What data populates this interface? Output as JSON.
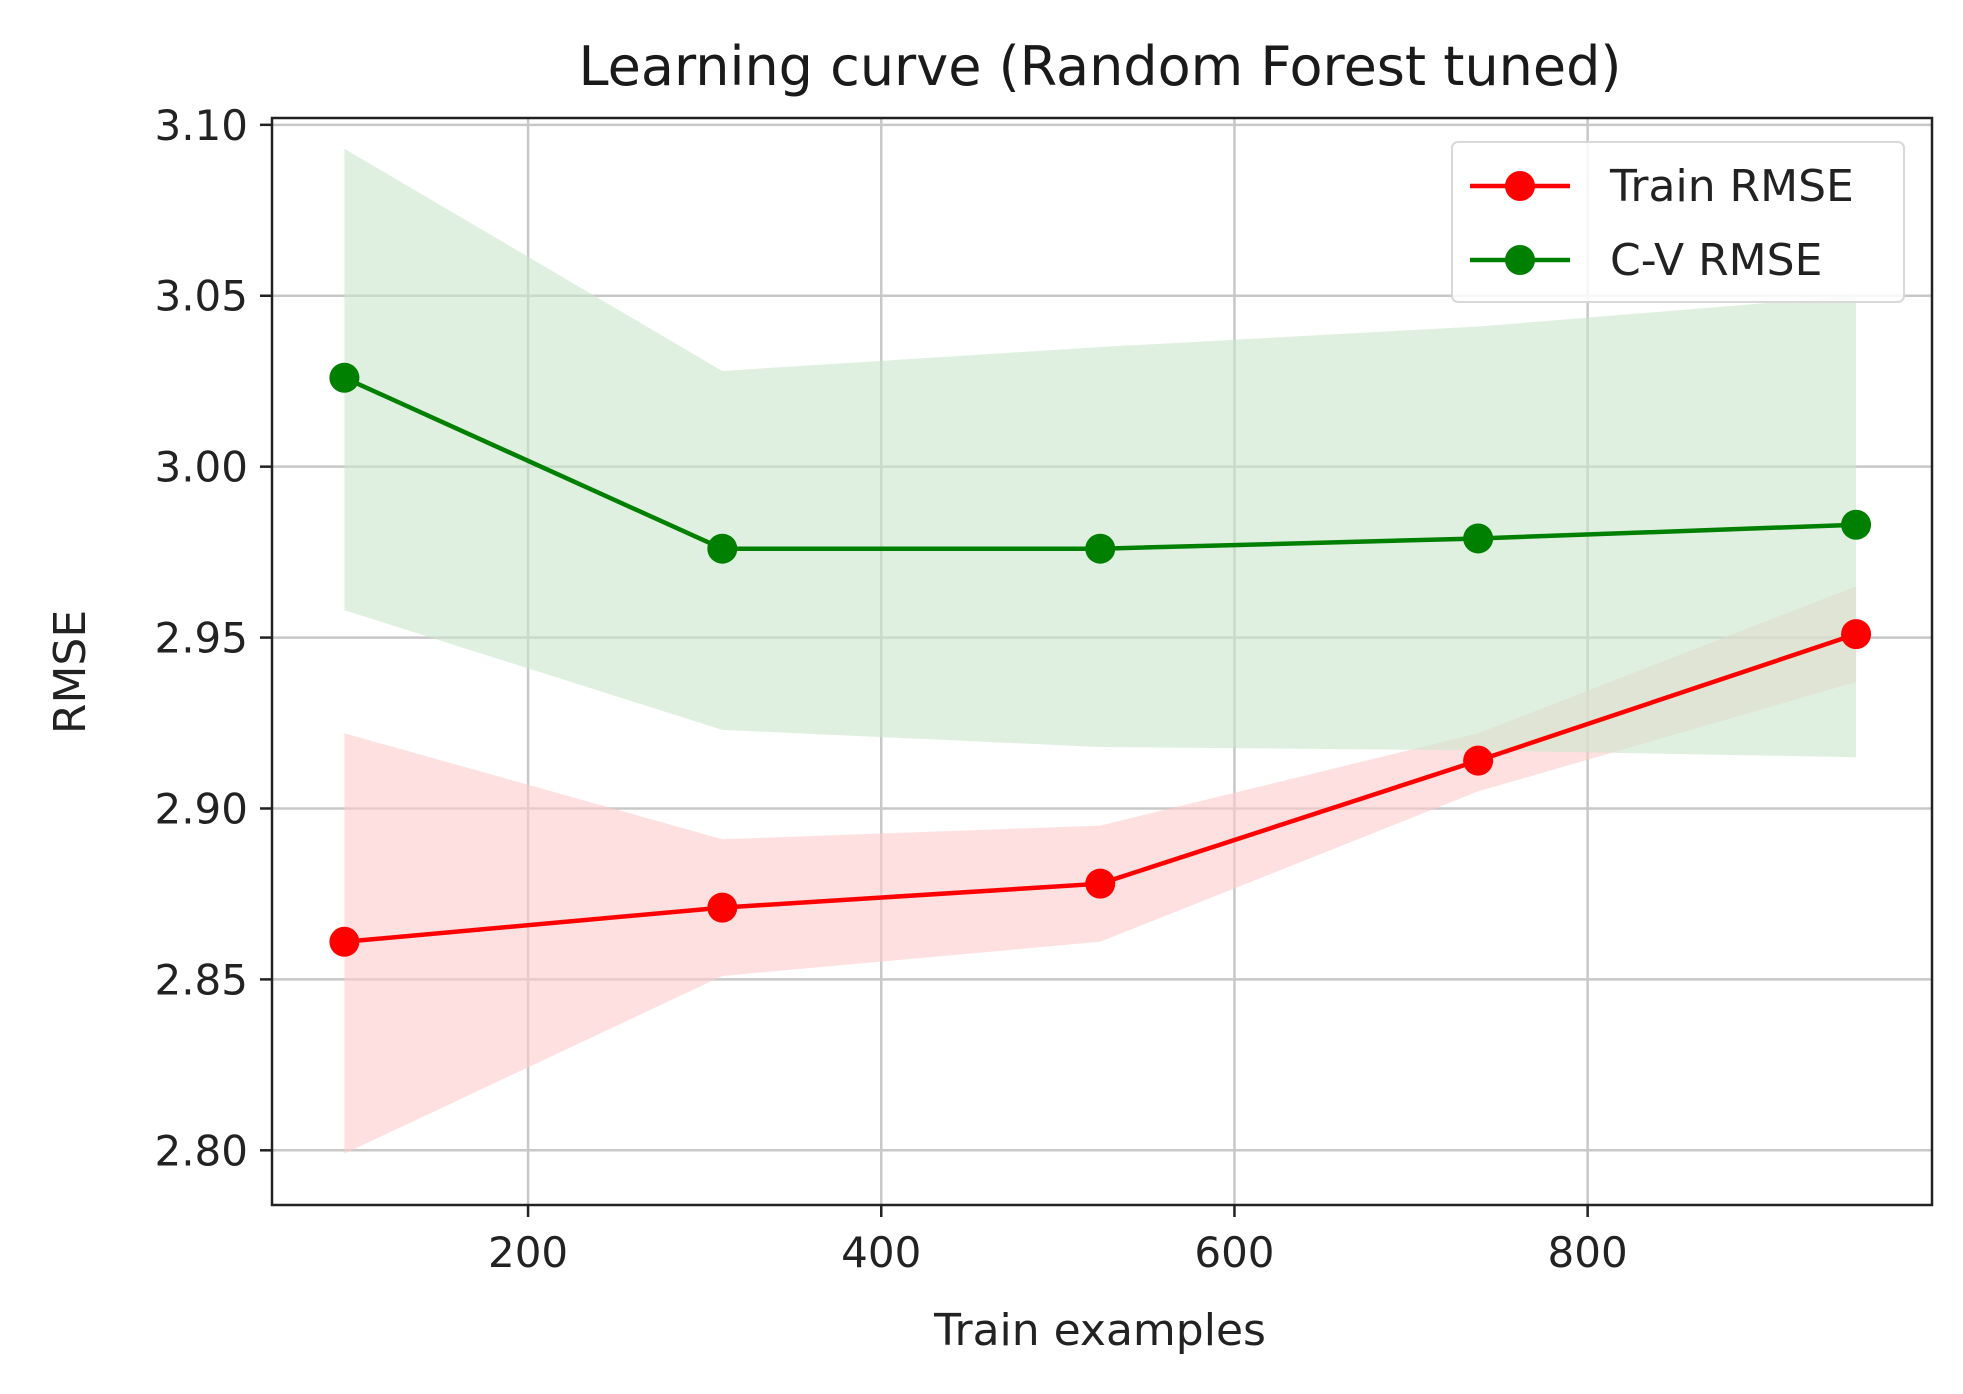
{
  "chart_data": {
    "type": "line",
    "title": "Learning curve (Random Forest tuned)",
    "xlabel": "Train examples",
    "ylabel": "RMSE",
    "xlim": [
      55,
      995
    ],
    "ylim": [
      2.784,
      3.102
    ],
    "xticks": [
      200,
      400,
      600,
      800
    ],
    "yticks": [
      2.8,
      2.85,
      2.9,
      2.95,
      3.0,
      3.05,
      3.1
    ],
    "ytick_labels": [
      "2.80",
      "2.85",
      "2.90",
      "2.95",
      "3.00",
      "3.05",
      "3.10"
    ],
    "grid": true,
    "legend_position": "top-right",
    "x": [
      96,
      310,
      524,
      738,
      952
    ],
    "series": [
      {
        "name": "Train RMSE",
        "color": "#ff0000",
        "band_color": "#ffcccc",
        "values": [
          2.861,
          2.871,
          2.878,
          2.914,
          2.951
        ],
        "upper": [
          2.922,
          2.891,
          2.895,
          2.922,
          2.965
        ],
        "lower": [
          2.799,
          2.851,
          2.861,
          2.905,
          2.937
        ]
      },
      {
        "name": "C-V RMSE",
        "color": "#008000",
        "band_color": "#cce6cc",
        "values": [
          3.026,
          2.976,
          2.976,
          2.979,
          2.983
        ],
        "upper": [
          3.093,
          3.028,
          3.035,
          3.041,
          3.05
        ],
        "lower": [
          2.958,
          2.923,
          2.918,
          2.917,
          2.915
        ]
      }
    ]
  }
}
